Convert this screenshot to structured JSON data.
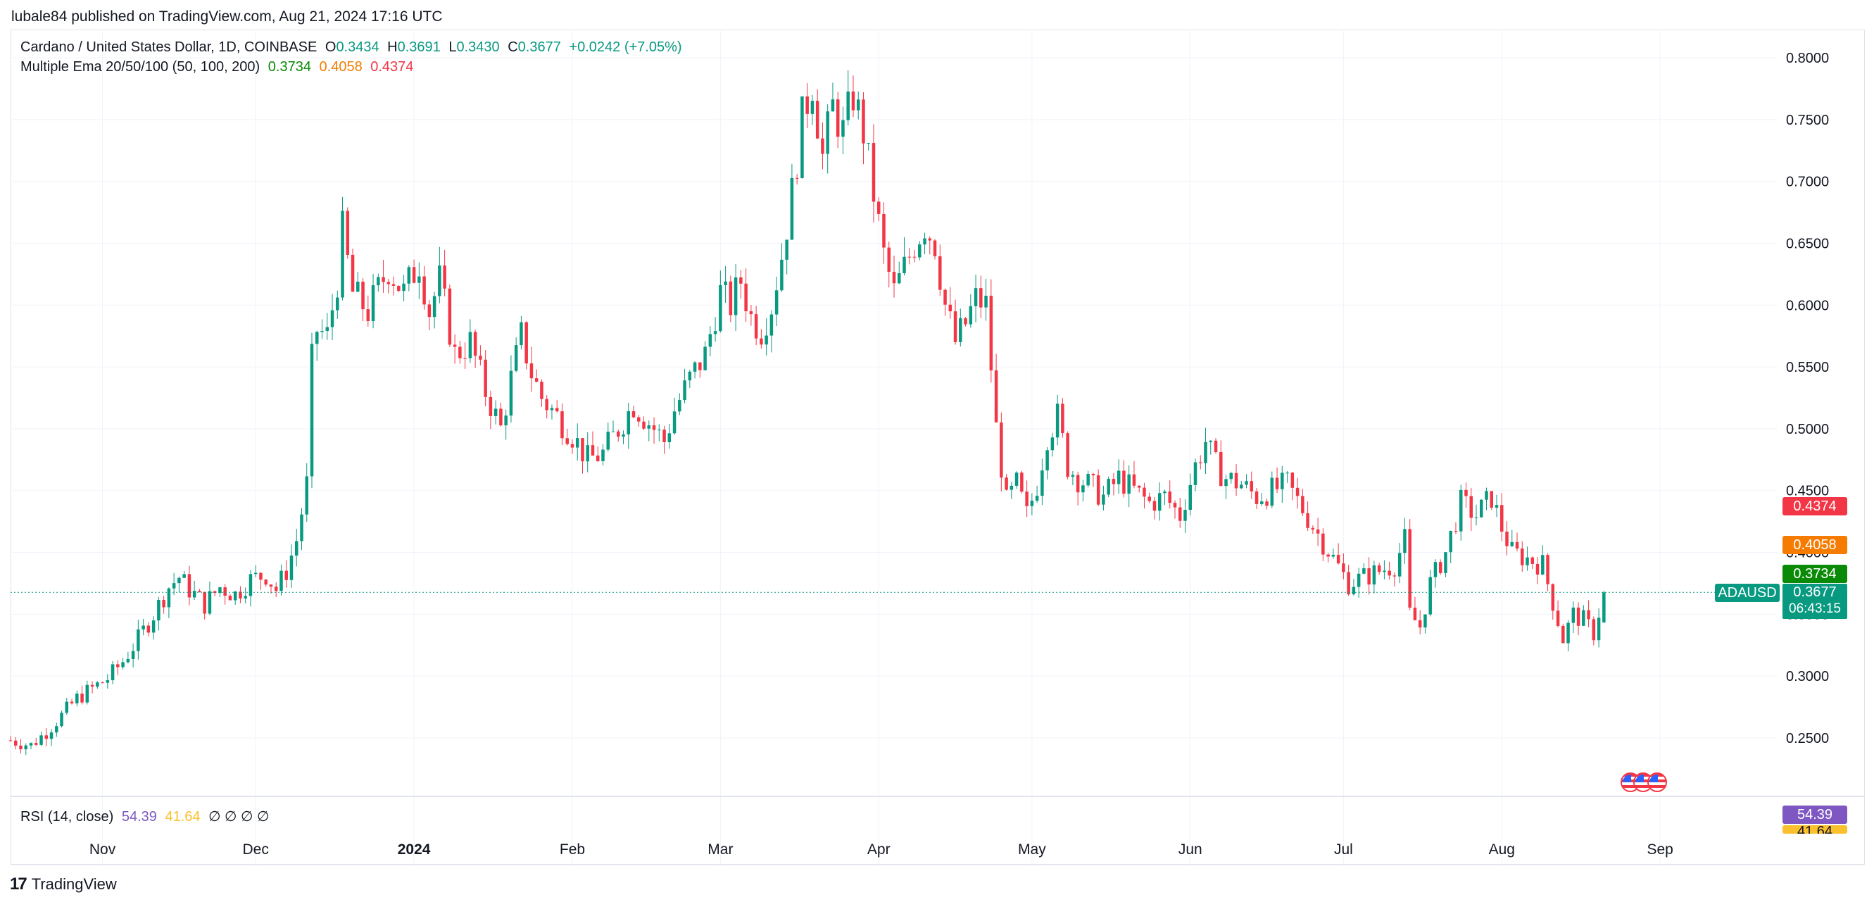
{
  "header": {
    "published": "lubale84 published on TradingView.com, Aug 21, 2024 17:16 UTC"
  },
  "legend": {
    "symbol": "Cardano / United States Dollar, 1D, COINBASE",
    "o_label": "O",
    "o_value": "0.3434",
    "h_label": "H",
    "h_value": "0.3691",
    "l_label": "L",
    "l_value": "0.3430",
    "c_label": "C",
    "c_value": "0.3677",
    "change": "+0.0242 (+7.05%)",
    "ema_label": "Multiple Ema 20/50/100 (50, 100, 200)",
    "ema1": "0.3734",
    "ema2": "0.4058",
    "ema3": "0.4374",
    "rsi_label": "RSI (14, close)",
    "rsi_value": "54.39",
    "rsi_ma": "41.64",
    "rsi_na": "∅ ∅ ∅ ∅"
  },
  "badges": {
    "ticker": "ADAUSD",
    "price": "0.3677",
    "countdown": "06:43:15",
    "ema1": "0.3734",
    "ema2": "0.4058",
    "ema3": "0.4374",
    "rsi": "54.39",
    "rsi_ma": "41.64"
  },
  "footer": {
    "brand": "TradingView",
    "brand_mark": "17"
  },
  "colors": {
    "up": "#089981",
    "down": "#f23645",
    "ema1": "#0b8a07",
    "ema2": "#f57c00",
    "ema3": "#f23645",
    "rsi": "#7e57c2",
    "rsi_ma": "#fbc02d",
    "grid": "#f0f3fa"
  },
  "chart_data": {
    "type": "candlestick",
    "title": "Cardano / United States Dollar, 1D, COINBASE",
    "y_ticks": [
      "0.2500",
      "0.3000",
      "0.3500",
      "0.4000",
      "0.4500",
      "0.5000",
      "0.5500",
      "0.6000",
      "0.6500",
      "0.7000",
      "0.7500",
      "0.8000"
    ],
    "ylim": [
      0.22,
      0.82
    ],
    "x_ticks": [
      {
        "label": "Nov",
        "date": "2023-11-01"
      },
      {
        "label": "Dec",
        "date": "2023-12-01"
      },
      {
        "label": "2024",
        "date": "2024-01-01"
      },
      {
        "label": "Feb",
        "date": "2024-02-01"
      },
      {
        "label": "Mar",
        "date": "2024-03-01"
      },
      {
        "label": "Apr",
        "date": "2024-04-01"
      },
      {
        "label": "May",
        "date": "2024-05-01"
      },
      {
        "label": "Jun",
        "date": "2024-06-01"
      },
      {
        "label": "Jul",
        "date": "2024-07-01"
      },
      {
        "label": "Aug",
        "date": "2024-08-01"
      },
      {
        "label": "Sep",
        "date": "2024-09-01"
      }
    ],
    "xlim": [
      "2023-10-14",
      "2024-09-24"
    ],
    "close_series": [
      [
        "2023-10-14",
        0.248
      ],
      [
        "2023-10-18",
        0.244
      ],
      [
        "2023-10-21",
        0.255
      ],
      [
        "2023-10-24",
        0.268
      ],
      [
        "2023-10-27",
        0.282
      ],
      [
        "2023-10-30",
        0.29
      ],
      [
        "2023-11-02",
        0.298
      ],
      [
        "2023-11-05",
        0.312
      ],
      [
        "2023-11-08",
        0.33
      ],
      [
        "2023-11-11",
        0.35
      ],
      [
        "2023-11-14",
        0.372
      ],
      [
        "2023-11-16",
        0.38
      ],
      [
        "2023-11-18",
        0.37
      ],
      [
        "2023-11-21",
        0.358
      ],
      [
        "2023-11-24",
        0.372
      ],
      [
        "2023-11-27",
        0.366
      ],
      [
        "2023-11-30",
        0.378
      ],
      [
        "2023-12-03",
        0.382
      ],
      [
        "2023-12-05",
        0.37
      ],
      [
        "2023-12-07",
        0.385
      ],
      [
        "2023-12-09",
        0.41
      ],
      [
        "2023-12-11",
        0.455
      ],
      [
        "2023-12-12",
        0.555
      ],
      [
        "2023-12-13",
        0.58
      ],
      [
        "2023-12-15",
        0.575
      ],
      [
        "2023-12-17",
        0.62
      ],
      [
        "2023-12-18",
        0.66
      ],
      [
        "2023-12-20",
        0.61
      ],
      [
        "2023-12-23",
        0.595
      ],
      [
        "2023-12-27",
        0.63
      ],
      [
        "2023-12-30",
        0.61
      ],
      [
        "2024-01-02",
        0.635
      ],
      [
        "2024-01-04",
        0.595
      ],
      [
        "2024-01-06",
        0.62
      ],
      [
        "2024-01-09",
        0.56
      ],
      [
        "2024-01-12",
        0.57
      ],
      [
        "2024-01-15",
        0.53
      ],
      [
        "2024-01-18",
        0.5
      ],
      [
        "2024-01-20",
        0.54
      ],
      [
        "2024-01-22",
        0.575
      ],
      [
        "2024-01-24",
        0.545
      ],
      [
        "2024-01-26",
        0.525
      ],
      [
        "2024-01-29",
        0.51
      ],
      [
        "2024-02-01",
        0.495
      ],
      [
        "2024-02-04",
        0.475
      ],
      [
        "2024-02-07",
        0.48
      ],
      [
        "2024-02-10",
        0.5
      ],
      [
        "2024-02-13",
        0.52
      ],
      [
        "2024-02-16",
        0.505
      ],
      [
        "2024-02-19",
        0.49
      ],
      [
        "2024-02-21",
        0.515
      ],
      [
        "2024-02-24",
        0.54
      ],
      [
        "2024-02-27",
        0.56
      ],
      [
        "2024-03-01",
        0.61
      ],
      [
        "2024-03-03",
        0.6
      ],
      [
        "2024-03-05",
        0.62
      ],
      [
        "2024-03-07",
        0.59
      ],
      [
        "2024-03-09",
        0.58
      ],
      [
        "2024-03-11",
        0.6
      ],
      [
        "2024-03-13",
        0.64
      ],
      [
        "2024-03-15",
        0.69
      ],
      [
        "2024-03-17",
        0.75
      ],
      [
        "2024-03-19",
        0.78
      ],
      [
        "2024-03-21",
        0.72
      ],
      [
        "2024-03-23",
        0.76
      ],
      [
        "2024-03-25",
        0.74
      ],
      [
        "2024-03-27",
        0.77
      ],
      [
        "2024-03-29",
        0.74
      ],
      [
        "2024-03-31",
        0.69
      ],
      [
        "2024-04-02",
        0.64
      ],
      [
        "2024-04-04",
        0.61
      ],
      [
        "2024-04-06",
        0.63
      ],
      [
        "2024-04-08",
        0.65
      ],
      [
        "2024-04-10",
        0.665
      ],
      [
        "2024-04-12",
        0.65
      ],
      [
        "2024-04-14",
        0.6
      ],
      [
        "2024-04-16",
        0.57
      ],
      [
        "2024-04-18",
        0.585
      ],
      [
        "2024-04-20",
        0.605
      ],
      [
        "2024-04-22",
        0.6
      ],
      [
        "2024-04-24",
        0.5
      ],
      [
        "2024-04-26",
        0.44
      ],
      [
        "2024-04-28",
        0.455
      ],
      [
        "2024-04-30",
        0.43
      ],
      [
        "2024-05-02",
        0.455
      ],
      [
        "2024-05-04",
        0.495
      ],
      [
        "2024-05-06",
        0.51
      ],
      [
        "2024-05-08",
        0.47
      ],
      [
        "2024-05-10",
        0.46
      ],
      [
        "2024-05-12",
        0.455
      ],
      [
        "2024-05-15",
        0.445
      ],
      [
        "2024-05-18",
        0.46
      ],
      [
        "2024-05-21",
        0.45
      ],
      [
        "2024-05-24",
        0.44
      ],
      [
        "2024-05-27",
        0.445
      ],
      [
        "2024-05-30",
        0.43
      ],
      [
        "2024-06-02",
        0.47
      ],
      [
        "2024-06-04",
        0.49
      ],
      [
        "2024-06-06",
        0.47
      ],
      [
        "2024-06-08",
        0.46
      ],
      [
        "2024-06-11",
        0.455
      ],
      [
        "2024-06-14",
        0.445
      ],
      [
        "2024-06-17",
        0.45
      ],
      [
        "2024-06-20",
        0.455
      ],
      [
        "2024-06-23",
        0.435
      ],
      [
        "2024-06-26",
        0.415
      ],
      [
        "2024-06-29",
        0.395
      ],
      [
        "2024-07-02",
        0.375
      ],
      [
        "2024-07-05",
        0.38
      ],
      [
        "2024-07-08",
        0.385
      ],
      [
        "2024-07-11",
        0.39
      ],
      [
        "2024-07-13",
        0.41
      ],
      [
        "2024-07-14",
        0.35
      ],
      [
        "2024-07-16",
        0.34
      ],
      [
        "2024-07-18",
        0.375
      ],
      [
        "2024-07-21",
        0.4
      ],
      [
        "2024-07-24",
        0.44
      ],
      [
        "2024-07-27",
        0.43
      ],
      [
        "2024-07-30",
        0.445
      ],
      [
        "2024-08-01",
        0.42
      ],
      [
        "2024-08-03",
        0.4
      ],
      [
        "2024-08-06",
        0.395
      ],
      [
        "2024-08-09",
        0.39
      ],
      [
        "2024-08-11",
        0.36
      ],
      [
        "2024-08-13",
        0.33
      ],
      [
        "2024-08-15",
        0.35
      ],
      [
        "2024-08-17",
        0.345
      ],
      [
        "2024-08-19",
        0.335
      ],
      [
        "2024-08-21",
        0.3677
      ]
    ],
    "ema_series": [
      {
        "name": "EMA 50",
        "color": "#0b8a07",
        "last": 0.3734
      },
      {
        "name": "EMA 100",
        "color": "#f57c00",
        "last": 0.4058
      },
      {
        "name": "EMA 200",
        "color": "#f23645",
        "last": 0.4374
      }
    ],
    "rsi": {
      "value": 54.39,
      "ma": 41.64
    }
  }
}
